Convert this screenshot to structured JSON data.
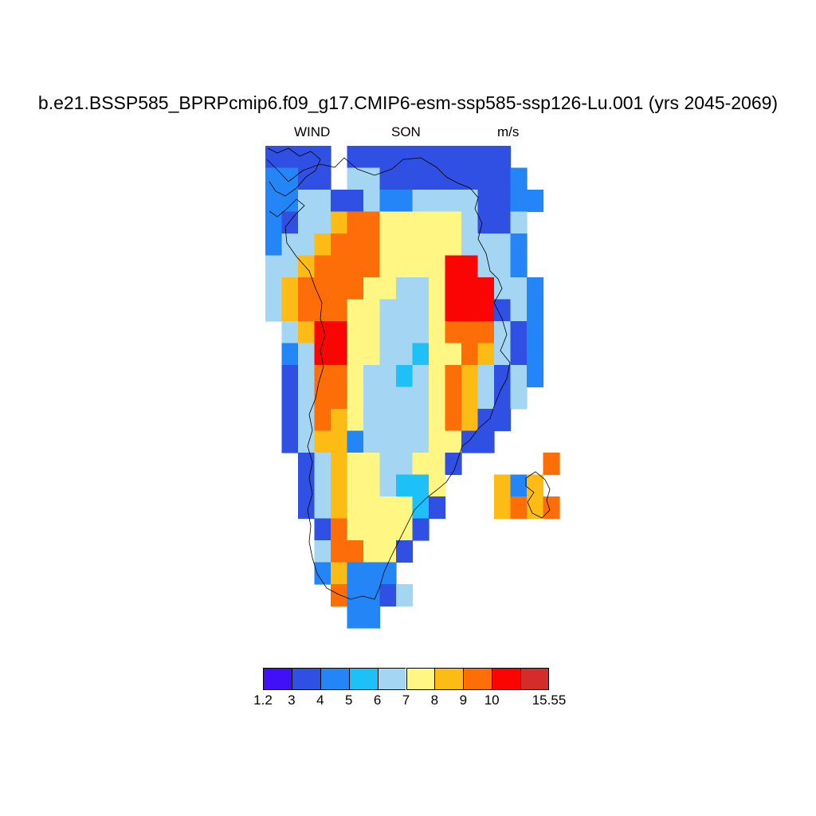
{
  "title": "b.e21.BSSP585_BPRPcmip6.f09_g17.CMIP6-esm-ssp585-ssp126-Lu.001 (yrs 2045-2069)",
  "subtitle": {
    "left": "WIND",
    "center": "SON",
    "right": "m/s"
  },
  "colorbar": {
    "colors": [
      "#4110f6",
      "#3050e4",
      "#2485f6",
      "#1ec0f8",
      "#a4d6f4",
      "#fff683",
      "#fdbb15",
      "#fd6e08",
      "#fa0504",
      "#d42b2b"
    ],
    "labels": [
      "1.2",
      "3",
      "4",
      "5",
      "6",
      "7",
      "8",
      "9",
      "10",
      "15.55"
    ]
  },
  "map": {
    "region": "Greenland",
    "variable": "wind speed",
    "grid_rows": [
      "BBBB.BBBBBBBBBB...",
      "LLBB.CCBBBBBBBBL..",
      "LLCCBBCLLCCCCBBLL.",
      "LBCCYOOYYYYYCBBC..",
      "LCCYOOOYYYYYCCCL..",
      "CCYOOOOYYYYRRCCL..",
      "CYOOOOYYLLYRRRCCL.",
      "CYOOOYYLLLYRRRBCL.",
      ".CYRRYYLLLYOOOCBL.",
      ".LCRRYYLLCYYOYCBL.",
      ".BCOOYLLCLYOYCBCL.",
      ".BCOOYLLLLYOYCBC..",
      ".BCOYYLLLLYOYBB...",
      ".BCYYLLLLLYYBB....",
      "..BCYYYLLYYB.....O",
      "..BCYYYLCCY...YLY.",
      "..BCYYYYYCB...YOYO",
      "...BOYYYYB........",
      "...COOYYB.........",
      "...LYLLL..........",
      "....OLLBC.........",
      ".....LL..........."
    ]
  }
}
